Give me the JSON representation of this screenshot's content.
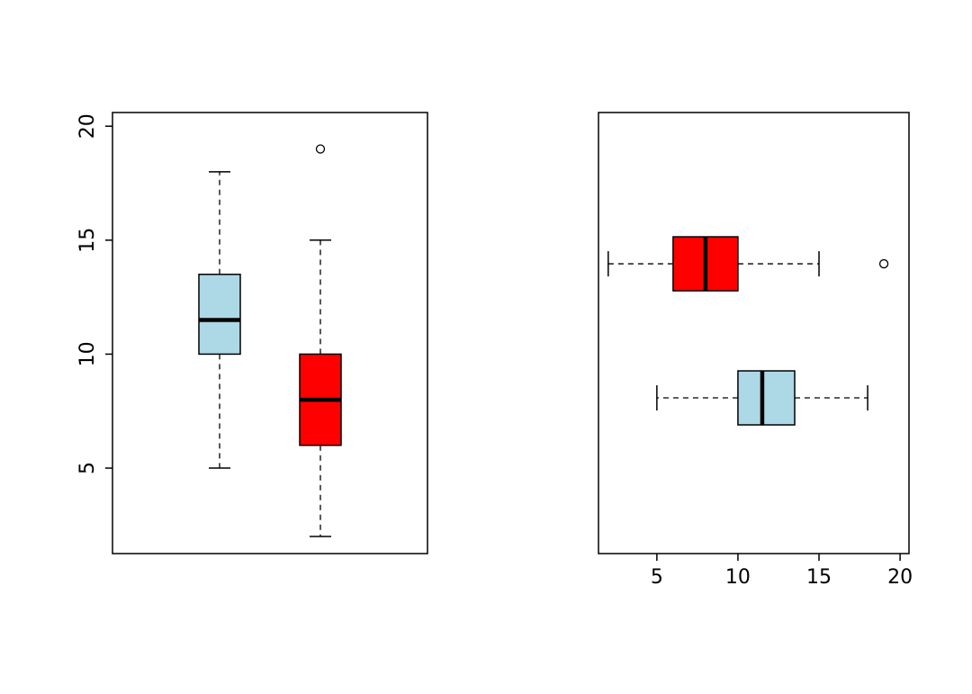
{
  "page": {
    "background_color": "#ffffff"
  },
  "chart_data": [
    {
      "type": "boxplot",
      "orientation": "vertical",
      "title": "",
      "xlabel": "",
      "ylabel": "",
      "grid": false,
      "legend": false,
      "frame_color": "#000000",
      "axis_ticks": [
        "5",
        "10",
        "15",
        "20"
      ],
      "tick_values": [
        5,
        10,
        15,
        20
      ],
      "value_range": [
        1.25,
        20.6
      ],
      "groups": [
        {
          "name": "group-1-lightblue",
          "box_color": "#ADD8E6",
          "border_color": "#000000",
          "whisker_low": 5,
          "q1": 10,
          "median": 11.5,
          "q3": 13.5,
          "whisker_high": 18,
          "outliers": []
        },
        {
          "name": "group-2-red",
          "box_color": "#FF0000",
          "border_color": "#000000",
          "whisker_low": 2,
          "q1": 6,
          "median": 8,
          "q3": 10,
          "whisker_high": 15,
          "outliers": [
            19
          ]
        }
      ]
    },
    {
      "type": "boxplot",
      "orientation": "horizontal",
      "title": "",
      "xlabel": "",
      "ylabel": "",
      "grid": false,
      "legend": false,
      "frame_color": "#000000",
      "axis_ticks": [
        "5",
        "10",
        "15",
        "20"
      ],
      "tick_values": [
        5,
        10,
        15,
        20
      ],
      "value_range": [
        1.4,
        20.55
      ],
      "groups": [
        {
          "name": "group-1-lightblue",
          "box_color": "#ADD8E6",
          "border_color": "#000000",
          "whisker_low": 5,
          "q1": 10,
          "median": 11.5,
          "q3": 13.5,
          "whisker_high": 18,
          "outliers": []
        },
        {
          "name": "group-2-red",
          "box_color": "#FF0000",
          "border_color": "#000000",
          "whisker_low": 2,
          "q1": 6,
          "median": 8,
          "q3": 10,
          "whisker_high": 15,
          "outliers": [
            19
          ]
        }
      ]
    }
  ]
}
